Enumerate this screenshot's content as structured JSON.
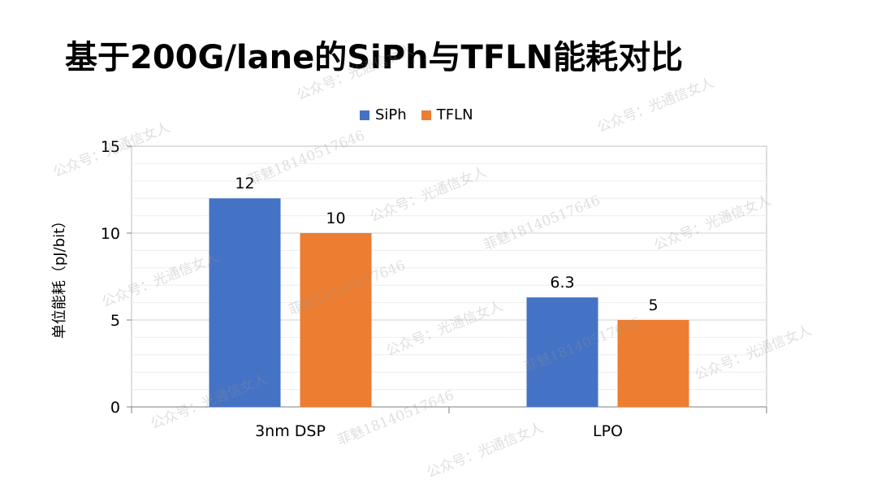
{
  "title": "基于200G/lane的SiPh与TFLN能耗对比",
  "watermark": {
    "text_a": "公众号：光通信女人",
    "text_b": "菲魅18140517646"
  },
  "chart_data": {
    "type": "bar",
    "categories": [
      "3nm DSP",
      "LPO"
    ],
    "series": [
      {
        "name": "SiPh",
        "values": [
          12,
          6.3
        ],
        "color": "#4472C4"
      },
      {
        "name": "TFLN",
        "values": [
          10,
          5
        ],
        "color": "#ED7D31"
      }
    ],
    "data_labels": [
      [
        "12",
        "10"
      ],
      [
        "6.3",
        "5"
      ]
    ],
    "xlabel": "",
    "ylabel": "单位能耗（pJ/bit）",
    "ylim": [
      0,
      15
    ],
    "yticks": [
      0,
      5,
      10,
      15
    ],
    "grid": true,
    "legend": "top"
  }
}
